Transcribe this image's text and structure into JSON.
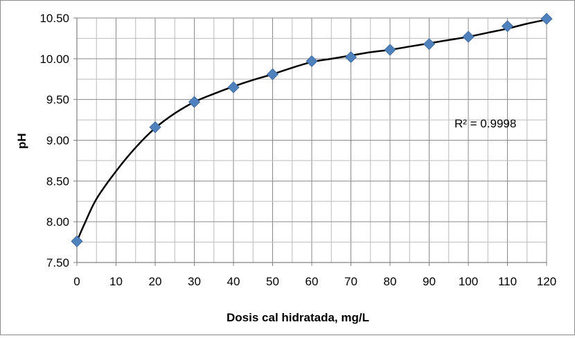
{
  "chart_data": {
    "type": "scatter",
    "xlabel": "Dosis cal hidratada, mg/L",
    "ylabel": "pH",
    "xlim": [
      0,
      120
    ],
    "ylim": [
      7.5,
      10.5
    ],
    "x_ticks": [
      0,
      10,
      20,
      30,
      40,
      50,
      60,
      70,
      80,
      90,
      100,
      110,
      120
    ],
    "y_ticks": [
      7.5,
      8.0,
      8.5,
      9.0,
      9.5,
      10.0,
      10.5
    ],
    "y_tick_labels": [
      "7.50",
      "8.00",
      "8.50",
      "9.00",
      "9.50",
      "10.00",
      "10.50"
    ],
    "grid": true,
    "minor_grid_per_major": 2,
    "series": [
      {
        "marker": "diamond",
        "color": "#4F81BD",
        "x": [
          0,
          20,
          30,
          40,
          50,
          60,
          70,
          80,
          90,
          100,
          110,
          120
        ],
        "y": [
          7.76,
          9.16,
          9.47,
          9.65,
          9.81,
          9.97,
          10.02,
          10.11,
          10.18,
          10.27,
          10.4,
          10.49
        ]
      }
    ],
    "trendline": {
      "color": "#000000",
      "x": [
        0,
        2,
        5,
        10,
        15,
        20,
        25,
        30,
        35,
        40,
        45,
        50,
        55,
        60,
        65,
        70,
        75,
        80,
        85,
        90,
        95,
        100,
        105,
        110,
        115,
        120
      ],
      "y": [
        7.76,
        7.98,
        8.28,
        8.62,
        8.91,
        9.15,
        9.33,
        9.47,
        9.57,
        9.66,
        9.74,
        9.81,
        9.89,
        9.96,
        10.0,
        10.04,
        10.08,
        10.11,
        10.15,
        10.19,
        10.23,
        10.27,
        10.32,
        10.37,
        10.43,
        10.48
      ]
    },
    "annotations": [
      {
        "text": "R² = 0.9998",
        "x": 100,
        "y": 9.2
      }
    ]
  }
}
